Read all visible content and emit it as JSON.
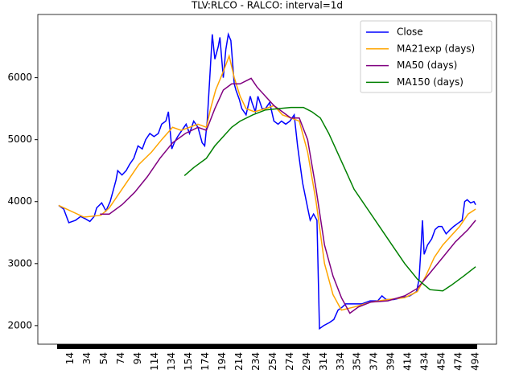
{
  "chart_data": {
    "type": "line",
    "title": "TLV:RLCO - RALCO: interval=1d",
    "xlim": [
      -24.7,
      518.7
    ],
    "xticks": [
      14,
      34,
      54,
      74,
      94,
      114,
      134,
      154,
      174,
      194,
      214,
      234,
      254,
      274,
      294,
      314,
      334,
      354,
      374,
      394,
      414,
      434,
      454,
      474,
      494
    ],
    "ylim": [
      1700,
      7020
    ],
    "yticks": [
      2000,
      3000,
      4000,
      5000,
      6000
    ],
    "legend": "upper right",
    "series": [
      {
        "name": "Close",
        "color": "#0000ff",
        "x": [
          0,
          6,
          12,
          20,
          26,
          32,
          37,
          42,
          45,
          51,
          56,
          61,
          65,
          68,
          70,
          75,
          80,
          84,
          89,
          94,
          99,
          103,
          108,
          113,
          118,
          122,
          127,
          130,
          134,
          137,
          141,
          146,
          151,
          155,
          160,
          165,
          170,
          173,
          176,
          179,
          182,
          185,
          189,
          191,
          195,
          198,
          201,
          204,
          208,
          210,
          214,
          217,
          222,
          227,
          229,
          233,
          236,
          241,
          245,
          250,
          255,
          260,
          264,
          269,
          274,
          279,
          283,
          286,
          289,
          292,
          295,
          298,
          302,
          306,
          309,
          314,
          321,
          326,
          331,
          336,
          340,
          350,
          359,
          369,
          378,
          383,
          388,
          397,
          407,
          416,
          424,
          427,
          429,
          431,
          433,
          437,
          442,
          446,
          450,
          454,
          459,
          464,
          468,
          473,
          478,
          481,
          484,
          488,
          492,
          494
        ],
        "values": [
          3940,
          3880,
          3660,
          3700,
          3760,
          3720,
          3680,
          3760,
          3900,
          3980,
          3850,
          4000,
          4200,
          4350,
          4500,
          4430,
          4500,
          4600,
          4700,
          4900,
          4850,
          5000,
          5100,
          5050,
          5100,
          5250,
          5300,
          5450,
          4850,
          4950,
          5050,
          5150,
          5250,
          5100,
          5300,
          5200,
          4950,
          4900,
          5300,
          6000,
          6700,
          6300,
          6500,
          6650,
          6000,
          6450,
          6700,
          6600,
          5900,
          5800,
          5650,
          5500,
          5400,
          5700,
          5600,
          5450,
          5700,
          5500,
          5500,
          5600,
          5300,
          5250,
          5300,
          5250,
          5300,
          5400,
          4900,
          4600,
          4300,
          4100,
          3900,
          3700,
          3800,
          3700,
          1950,
          2000,
          2050,
          2100,
          2250,
          2300,
          2350,
          2350,
          2350,
          2400,
          2400,
          2480,
          2420,
          2420,
          2450,
          2480,
          2550,
          2750,
          3200,
          3700,
          3150,
          3300,
          3400,
          3550,
          3600,
          3600,
          3480,
          3550,
          3600,
          3650,
          3700,
          4000,
          4030,
          3980,
          4000,
          3950
        ]
      },
      {
        "name": "MA21exp (days)",
        "color": "#ffa500",
        "x": [
          0,
          30,
          50,
          60,
          75,
          85,
          95,
          110,
          122,
          135,
          145,
          155,
          165,
          175,
          180,
          186,
          195,
          202,
          208,
          215,
          222,
          232,
          245,
          255,
          265,
          275,
          285,
          295,
          305,
          315,
          325,
          335,
          350,
          370,
          390,
          410,
          425,
          435,
          445,
          455,
          465,
          475,
          485,
          494
        ],
        "values": [
          3940,
          3750,
          3780,
          3900,
          4200,
          4400,
          4600,
          4800,
          5000,
          5200,
          5150,
          5200,
          5250,
          5200,
          5500,
          5800,
          6100,
          6350,
          6000,
          5700,
          5500,
          5450,
          5500,
          5550,
          5400,
          5350,
          5300,
          4800,
          4000,
          3000,
          2500,
          2250,
          2300,
          2380,
          2420,
          2450,
          2550,
          2800,
          3100,
          3300,
          3450,
          3600,
          3800,
          3880
        ]
      },
      {
        "name": "MA50 (days)",
        "color": "#800080",
        "x": [
          49,
          60,
          75,
          90,
          105,
          120,
          135,
          150,
          165,
          175,
          185,
          195,
          205,
          215,
          228,
          235,
          245,
          255,
          265,
          275,
          285,
          295,
          305,
          315,
          325,
          335,
          345,
          355,
          370,
          390,
          410,
          425,
          440,
          455,
          470,
          485,
          494
        ],
        "values": [
          3800,
          3800,
          3950,
          4150,
          4400,
          4700,
          4950,
          5100,
          5200,
          5150,
          5500,
          5800,
          5900,
          5900,
          5990,
          5850,
          5700,
          5550,
          5450,
          5350,
          5350,
          5000,
          4200,
          3300,
          2800,
          2450,
          2200,
          2300,
          2380,
          2400,
          2480,
          2600,
          2850,
          3100,
          3350,
          3550,
          3700
        ]
      },
      {
        "name": "MA150 (days)",
        "color": "#008000",
        "x": [
          149,
          160,
          175,
          185,
          195,
          205,
          215,
          230,
          245,
          260,
          275,
          290,
          300,
          310,
          320,
          330,
          340,
          350,
          365,
          380,
          395,
          410,
          425,
          440,
          455,
          465,
          480,
          494
        ],
        "values": [
          4420,
          4550,
          4700,
          4900,
          5050,
          5200,
          5300,
          5400,
          5480,
          5500,
          5520,
          5520,
          5450,
          5350,
          5100,
          4800,
          4500,
          4200,
          3900,
          3600,
          3300,
          3000,
          2750,
          2580,
          2560,
          2650,
          2800,
          2950
        ]
      }
    ]
  }
}
